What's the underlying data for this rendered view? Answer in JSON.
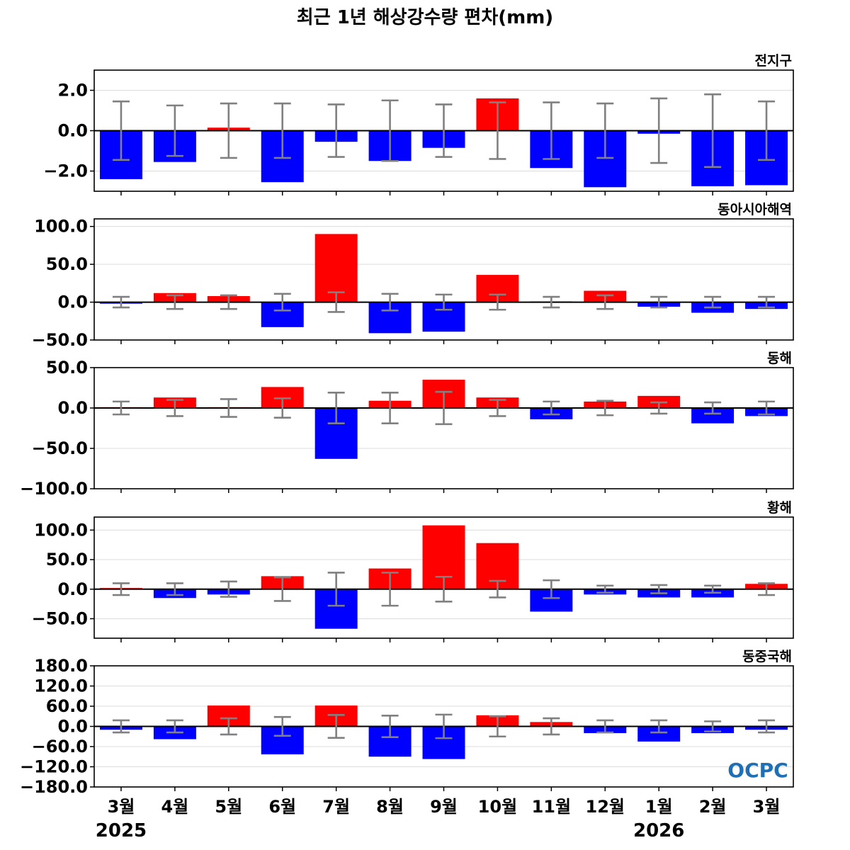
{
  "title": "최근 1년 해상강수량 편차(mm)",
  "logo": "OCPC",
  "chart_data": {
    "type": "bar",
    "categories": [
      "3월",
      "4월",
      "5월",
      "6월",
      "7월",
      "8월",
      "9월",
      "10월",
      "11월",
      "12월",
      "1월",
      "2월",
      "3월"
    ],
    "year_labels": [
      {
        "index": 0,
        "label": "2025"
      },
      {
        "index": 10,
        "label": "2026"
      }
    ],
    "colors": {
      "positive": "#ff0000",
      "negative": "#0000ff",
      "errorbar": "#808080"
    },
    "grid": "horizontal",
    "panels": [
      {
        "title": "전지구",
        "ylim": [
          -3.0,
          3.0
        ],
        "yticks": [
          -2.0,
          0.0,
          2.0
        ],
        "tick_labels": [
          "−2.0",
          "0.0",
          "2.0"
        ],
        "values": [
          -2.4,
          -1.55,
          0.15,
          -2.55,
          -0.55,
          -1.5,
          -0.85,
          1.6,
          -1.85,
          -2.8,
          -0.15,
          -2.75,
          -2.7
        ],
        "errors": [
          1.45,
          1.25,
          1.35,
          1.35,
          1.3,
          1.5,
          1.3,
          1.4,
          1.4,
          1.35,
          1.6,
          1.8,
          1.45
        ]
      },
      {
        "title": "동아시아해역",
        "ylim": [
          -50,
          110
        ],
        "yticks": [
          -50,
          0,
          50,
          100
        ],
        "tick_labels": [
          "−50.0",
          "0.0",
          "50.0",
          "100.0"
        ],
        "values": [
          -2,
          12,
          8,
          -33,
          90,
          -41,
          -39,
          36,
          1,
          15,
          -6,
          -14,
          -9
        ],
        "errors": [
          7,
          9,
          9,
          11,
          13,
          11,
          10,
          10,
          7,
          9,
          7,
          7,
          7
        ]
      },
      {
        "title": "동해",
        "ylim": [
          -100,
          50
        ],
        "yticks": [
          -100,
          -50,
          0,
          50
        ],
        "tick_labels": [
          "−100.0",
          "−50.0",
          "0.0",
          "50.0"
        ],
        "values": [
          1,
          13,
          1,
          26,
          -63,
          9,
          35,
          13,
          -14,
          8,
          15,
          -19,
          -10
        ],
        "errors": [
          8,
          10,
          11,
          12,
          19,
          19,
          20,
          10,
          8,
          9,
          7,
          7,
          8
        ]
      },
      {
        "title": "황해",
        "ylim": [
          -83,
          122
        ],
        "yticks": [
          -50,
          0,
          50,
          100
        ],
        "tick_labels": [
          "−50.0",
          "0.0",
          "50.0",
          "100.0"
        ],
        "values": [
          2,
          -15,
          -9,
          22,
          -67,
          35,
          108,
          78,
          -38,
          -9,
          -14,
          -14,
          9
        ],
        "errors": [
          10,
          10,
          13,
          20,
          28,
          28,
          21,
          14,
          15,
          6,
          7,
          6,
          10
        ]
      },
      {
        "title": "동중국해",
        "ylim": [
          -180,
          180
        ],
        "yticks": [
          -180,
          -120,
          -60,
          0,
          60,
          120,
          180
        ],
        "tick_labels": [
          "−180.0",
          "−120.0",
          "−60.0",
          "0.0",
          "60.0",
          "120.0",
          "180.0"
        ],
        "values": [
          -10,
          -38,
          62,
          -83,
          62,
          -90,
          -97,
          33,
          13,
          -20,
          -45,
          -20,
          -10
        ],
        "errors": [
          18,
          18,
          24,
          28,
          34,
          32,
          35,
          30,
          24,
          18,
          18,
          15,
          18
        ]
      }
    ]
  }
}
